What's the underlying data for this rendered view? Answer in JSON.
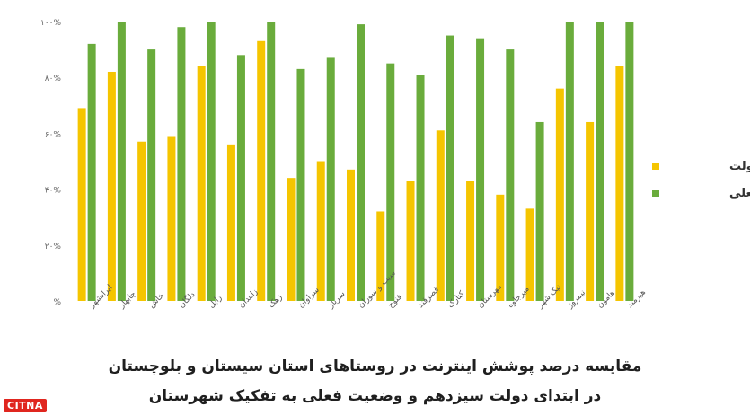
{
  "chart_data": {
    "type": "bar",
    "categories": [
      "ایرانشهر",
      "چابهار",
      "خاش",
      "دلگان",
      "زابل",
      "زاهدان",
      "زهک",
      "سراوان",
      "سرباز",
      "سیب و سوران",
      "فنوج",
      "قصرقند",
      "کنارک",
      "مهرستان",
      "میرجاوه",
      "نیک شهر",
      "نیمروز",
      "هامون",
      "هیرمند"
    ],
    "series": [
      {
        "name": "ابتدای دولت",
        "color": "#f5c500",
        "values": [
          69,
          82,
          57,
          59,
          84,
          56,
          93,
          44,
          50,
          47,
          32,
          43,
          61,
          43,
          38,
          33,
          76,
          64,
          84
        ]
      },
      {
        "name": "وضعیت فعلی",
        "color": "#6aac3c",
        "values": [
          92,
          100,
          90,
          98,
          100,
          88,
          100,
          83,
          87,
          99,
          85,
          81,
          95,
          94,
          90,
          64,
          100,
          100,
          100
        ]
      }
    ],
    "yticks": [
      "%",
      "۲۰%",
      "۴۰%",
      "۶۰%",
      "۸۰%",
      "۱۰۰%"
    ],
    "ylim": [
      0,
      100
    ],
    "grid": false,
    "legend_position": "right"
  },
  "caption": {
    "line1": "مقایسه درصد پوشش اینترنت در روستاهای استان سیستان و بلوچستان",
    "line2": "در ابتدای دولت سیزدهم و وضعیت فعلی به تفکیک شهرستان"
  },
  "logo": "CITNA"
}
